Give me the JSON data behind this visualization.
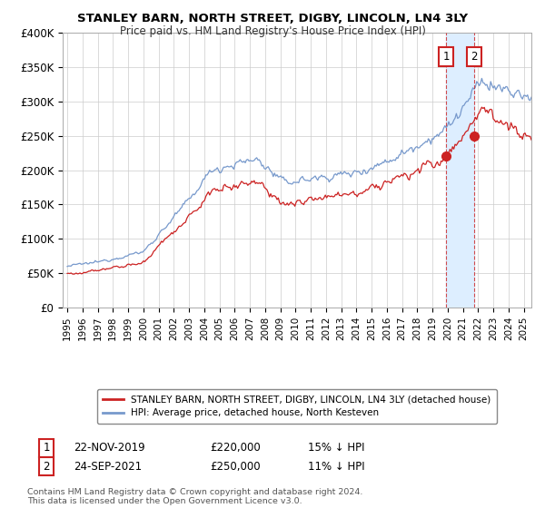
{
  "title": "STANLEY BARN, NORTH STREET, DIGBY, LINCOLN, LN4 3LY",
  "subtitle": "Price paid vs. HM Land Registry's House Price Index (HPI)",
  "ylabel_ticks": [
    "£0",
    "£50K",
    "£100K",
    "£150K",
    "£200K",
    "£250K",
    "£300K",
    "£350K",
    "£400K"
  ],
  "ytick_values": [
    0,
    50000,
    100000,
    150000,
    200000,
    250000,
    300000,
    350000,
    400000
  ],
  "ylim": [
    0,
    400000
  ],
  "xlim_start": 1994.7,
  "xlim_end": 2025.5,
  "hpi_color": "#7799cc",
  "price_color": "#cc2222",
  "shade_color": "#ddeeff",
  "t1": 2019.9,
  "t2": 2021.75,
  "p1": 220000,
  "p2": 250000,
  "legend_line1": "STANLEY BARN, NORTH STREET, DIGBY, LINCOLN, LN4 3LY (detached house)",
  "legend_line2": "HPI: Average price, detached house, North Kesteven",
  "ann1_date": "22-NOV-2019",
  "ann1_price": "£220,000",
  "ann1_pct": "15% ↓ HPI",
  "ann2_date": "24-SEP-2021",
  "ann2_price": "£250,000",
  "ann2_pct": "11% ↓ HPI",
  "footer": "Contains HM Land Registry data © Crown copyright and database right 2024.\nThis data is licensed under the Open Government Licence v3.0.",
  "background_color": "#ffffff",
  "grid_color": "#cccccc"
}
